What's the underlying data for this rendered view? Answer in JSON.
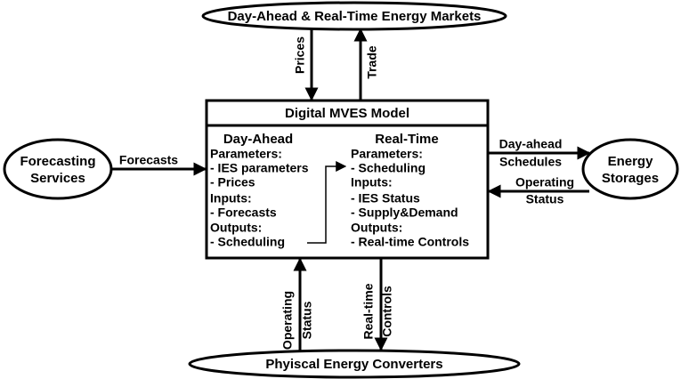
{
  "nodes": [
    {
      "id": "markets",
      "label": "Day-Ahead & Real-Time Energy Markets"
    },
    {
      "id": "forecasting",
      "label": [
        "Forecasting",
        "Services"
      ]
    },
    {
      "id": "storages",
      "label": [
        "Energy",
        "Storages"
      ]
    },
    {
      "id": "converters",
      "label": "Phyiscal Energy Converters"
    }
  ],
  "model": {
    "title": "Digital MVES Model",
    "day_ahead": {
      "heading": "Day-Ahead",
      "lines": [
        "Parameters:",
        "- IES parameters",
        "- Prices",
        "Inputs:",
        "- Forecasts",
        "Outputs:",
        "- Scheduling"
      ]
    },
    "real_time": {
      "heading": "Real-Time",
      "lines": [
        "Parameters:",
        "- Scheduling",
        "Inputs:",
        "- IES Status",
        "- Supply&Demand",
        "Outputs:",
        "- Real-time Controls"
      ]
    }
  },
  "edges": [
    {
      "label": [
        "Prices"
      ]
    },
    {
      "label": [
        "Trade"
      ]
    },
    {
      "label": [
        "Forecasts"
      ]
    },
    {
      "label": [
        "Day-ahead",
        "Schedules"
      ]
    },
    {
      "label": [
        "Operating",
        "Status"
      ]
    },
    {
      "label": [
        "Operating",
        "Status"
      ]
    },
    {
      "label": [
        "Real-time",
        "Controls"
      ]
    }
  ]
}
